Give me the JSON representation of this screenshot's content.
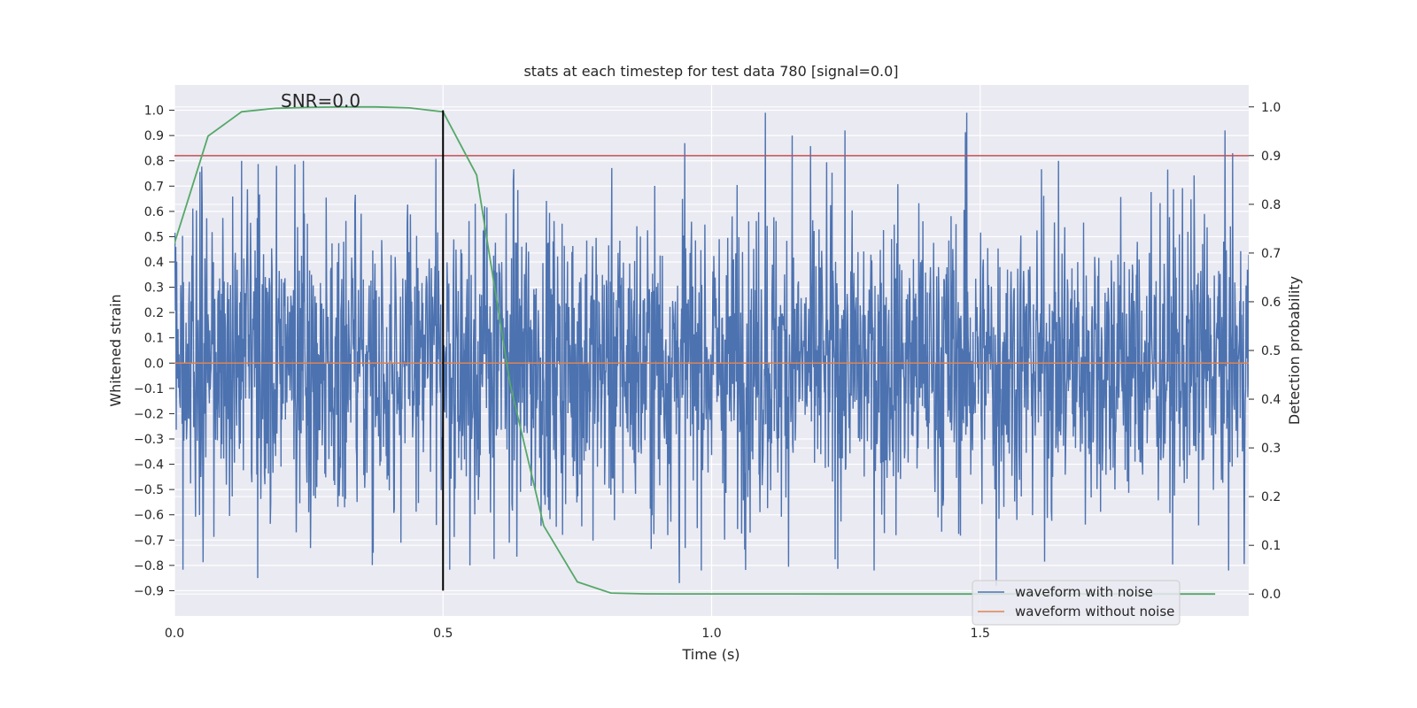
{
  "chart_data": {
    "type": "line",
    "title": "stats at each timestep for test data 780 [signal=0.0]",
    "annotation": "SNR=0.0",
    "xlabel": "Time (s)",
    "ylabel": "Whitened strain",
    "y2label": "Detection probability",
    "xlim": [
      0.0,
      2.0
    ],
    "ylim": [
      -1.0,
      1.1
    ],
    "y2lim": [
      -0.045,
      1.045
    ],
    "xticks": [
      0.0,
      0.5,
      1.0,
      1.5
    ],
    "xtick_labels": [
      "0.0",
      "0.5",
      "1.0",
      "1.5"
    ],
    "yticks": [
      -0.9,
      -0.8,
      -0.7,
      -0.6,
      -0.5,
      -0.4,
      -0.3,
      -0.2,
      -0.1,
      0.0,
      0.1,
      0.2,
      0.3,
      0.4,
      0.5,
      0.6,
      0.7,
      0.8,
      0.9,
      1.0
    ],
    "ytick_labels": [
      "−0.9",
      "−0.8",
      "−0.7",
      "−0.6",
      "−0.5",
      "−0.4",
      "−0.3",
      "−0.2",
      "−0.1",
      "0.0",
      "0.1",
      "0.2",
      "0.3",
      "0.4",
      "0.5",
      "0.6",
      "0.7",
      "0.8",
      "0.9",
      "1.0"
    ],
    "y2ticks": [
      0.0,
      0.1,
      0.2,
      0.3,
      0.4,
      0.5,
      0.6,
      0.7,
      0.8,
      0.9,
      1.0
    ],
    "y2tick_labels": [
      "0.0",
      "0.1",
      "0.2",
      "0.3",
      "0.4",
      "0.5",
      "0.6",
      "0.7",
      "0.8",
      "0.9",
      "1.0"
    ],
    "grid": true,
    "legend": {
      "location": "lower-right",
      "entries": [
        "waveform with noise",
        "waveform without noise"
      ]
    },
    "series": [
      {
        "name": "waveform with noise",
        "color": "#4c72b0",
        "kind": "noise",
        "t_start": 0.0,
        "t_end": 2.0,
        "approx_std": 0.3,
        "approx_range": [
          -0.85,
          1.0
        ],
        "notable_peaks": [
          {
            "t": 0.125,
            "y": 0.8
          },
          {
            "t": 0.155,
            "y": -0.85
          },
          {
            "t": 0.19,
            "y": 0.78
          },
          {
            "t": 0.24,
            "y": 0.8
          },
          {
            "t": 0.37,
            "y": -0.75
          },
          {
            "t": 0.56,
            "y": 0.63
          },
          {
            "t": 0.55,
            "y": -0.8
          },
          {
            "t": 0.94,
            "y": -0.87
          },
          {
            "t": 0.95,
            "y": 0.87
          },
          {
            "t": 1.1,
            "y": 0.99
          },
          {
            "t": 1.15,
            "y": 0.9
          },
          {
            "t": 1.475,
            "y": 0.99
          },
          {
            "t": 1.53,
            "y": -0.88
          },
          {
            "t": 1.97,
            "y": 0.83
          }
        ]
      },
      {
        "name": "waveform without noise",
        "color": "#dd8452",
        "x": [
          0.0,
          2.0
        ],
        "y": [
          0.0,
          0.0
        ]
      },
      {
        "name": "detection probability",
        "color": "#55a868",
        "axis": "right",
        "x": [
          0.0,
          0.0625,
          0.125,
          0.1875,
          0.25,
          0.3125,
          0.375,
          0.4375,
          0.5,
          0.5625,
          0.625,
          0.6875,
          0.75,
          0.8125,
          0.875,
          0.9375,
          1.0,
          1.25,
          1.5,
          1.75,
          1.9375
        ],
        "y": [
          0.72,
          0.94,
          0.99,
          0.997,
          0.999,
          1.0,
          1.0,
          0.998,
          0.99,
          0.86,
          0.43,
          0.14,
          0.025,
          0.002,
          0.0005,
          0.0003,
          0.0002,
          0.0001,
          0.0001,
          0.0001,
          0.0001
        ]
      }
    ],
    "threshold_line": {
      "axis": "right",
      "y": 0.9,
      "color": "#c44e52"
    },
    "vertical_line": {
      "x": 0.5,
      "y_from": -0.9,
      "y_to": 1.0,
      "color": "#000000"
    },
    "colors": {
      "plot_background": "#eaeaf2",
      "grid": "#ffffff",
      "text": "#262626",
      "legend_border": "#cccccc"
    }
  }
}
